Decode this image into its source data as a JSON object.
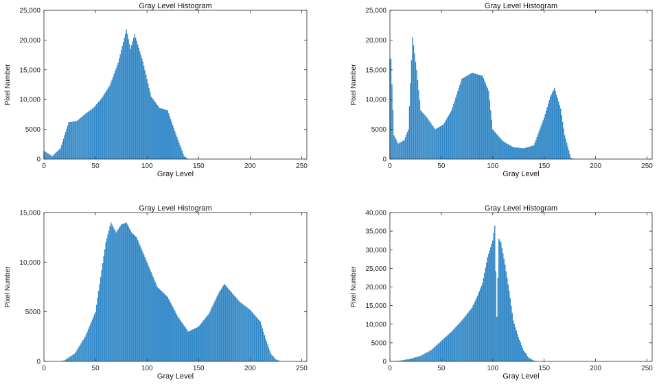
{
  "chart_data": [
    {
      "type": "bar",
      "title": "Gray Level Histogram",
      "xlabel": "Gray Level",
      "ylabel": "Pixel Number",
      "xlim": [
        0,
        255
      ],
      "ylim": [
        0,
        25000
      ],
      "xticks": [
        0,
        50,
        100,
        150,
        200,
        250
      ],
      "yticks": [
        "0",
        "5000",
        "10,000",
        "15,000",
        "20,000",
        "25,000"
      ],
      "color": "#2f86c6",
      "x": [
        0,
        8,
        16,
        24,
        32,
        40,
        48,
        56,
        64,
        72,
        80,
        84,
        88,
        96,
        104,
        112,
        120,
        128,
        136,
        140,
        144,
        150,
        255
      ],
      "values": [
        1400,
        500,
        1800,
        6200,
        6400,
        7600,
        8600,
        10200,
        12400,
        16200,
        21800,
        18500,
        21000,
        16400,
        10500,
        8600,
        8200,
        4200,
        500,
        0,
        0,
        0,
        0
      ]
    },
    {
      "type": "bar",
      "title": "Gray Level Histogram",
      "xlabel": "Gray Level",
      "ylabel": "Pixel Number",
      "xlim": [
        0,
        255
      ],
      "ylim": [
        0,
        25000
      ],
      "xticks": [
        0,
        50,
        100,
        150,
        200,
        250
      ],
      "yticks": [
        "0",
        "5000",
        "10,000",
        "15,000",
        "20,000",
        "25,000"
      ],
      "color": "#2f86c6",
      "x": [
        0,
        1,
        4,
        8,
        14,
        18,
        22,
        26,
        30,
        36,
        44,
        52,
        60,
        70,
        80,
        90,
        96,
        100,
        110,
        120,
        130,
        140,
        150,
        156,
        160,
        166,
        170,
        176,
        180,
        255
      ],
      "values": [
        17000,
        16800,
        4000,
        2600,
        3200,
        5000,
        20500,
        15000,
        8200,
        7000,
        5000,
        5800,
        8200,
        13500,
        14500,
        14000,
        11500,
        5000,
        3000,
        2000,
        1800,
        2300,
        7000,
        10500,
        12000,
        8500,
        4000,
        200,
        0,
        0
      ]
    },
    {
      "type": "bar",
      "title": "Gray Level Histogram",
      "xlabel": "Gray Level",
      "ylabel": "Pixel Number",
      "xlim": [
        0,
        255
      ],
      "ylim": [
        0,
        15000
      ],
      "xticks": [
        0,
        50,
        100,
        150,
        200,
        250
      ],
      "yticks": [
        "0",
        "5000",
        "10,000",
        "15,000"
      ],
      "color": "#2f86c6",
      "x": [
        0,
        15,
        20,
        30,
        40,
        50,
        55,
        60,
        65,
        70,
        75,
        80,
        85,
        90,
        100,
        110,
        120,
        130,
        140,
        150,
        160,
        170,
        175,
        180,
        190,
        200,
        210,
        215,
        220,
        225,
        230,
        255
      ],
      "values": [
        0,
        0,
        100,
        800,
        2500,
        5000,
        8500,
        12000,
        14000,
        13000,
        13800,
        14000,
        13000,
        12500,
        10000,
        7500,
        6500,
        4500,
        3000,
        3500,
        4800,
        7000,
        7800,
        7200,
        6000,
        5200,
        4000,
        2300,
        800,
        200,
        0,
        0
      ]
    },
    {
      "type": "bar",
      "title": "Gray Level Histogram",
      "xlabel": "Gray Level",
      "ylabel": "Pixel Number",
      "xlim": [
        0,
        255
      ],
      "ylim": [
        0,
        40000
      ],
      "xticks": [
        0,
        50,
        100,
        150,
        200,
        250
      ],
      "yticks": [
        "0",
        "5000",
        "10,000",
        "15,000",
        "20,000",
        "25,000",
        "30,000",
        "35,000",
        "40,000"
      ],
      "color": "#2f86c6",
      "x": [
        0,
        10,
        20,
        30,
        40,
        50,
        60,
        70,
        80,
        85,
        90,
        95,
        100,
        102,
        104,
        106,
        108,
        112,
        116,
        120,
        125,
        130,
        135,
        140,
        145,
        255
      ],
      "values": [
        0,
        200,
        700,
        1500,
        3000,
        5500,
        8000,
        11000,
        14500,
        17500,
        21000,
        28000,
        32500,
        36500,
        12000,
        33000,
        32000,
        26000,
        19000,
        11000,
        6500,
        3000,
        1000,
        200,
        0,
        0
      ]
    }
  ]
}
